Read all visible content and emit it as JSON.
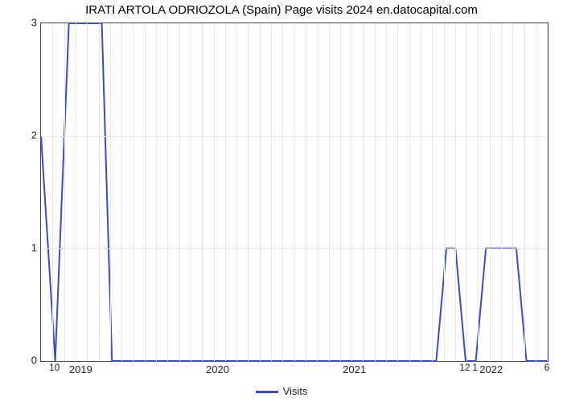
{
  "chart": {
    "type": "line",
    "title": "IRATI ARTOLA ODRIOZOLA (Spain) Page visits 2024 en.datocapital.com",
    "title_fontsize": 15,
    "background_color": "#ffffff",
    "plot_border_color": "#444444",
    "grid_color": "#e7e7e7",
    "text_color": "#000000",
    "axis_label_fontsize": 13,
    "line_color": "#3b4cc0",
    "line_width": 2,
    "y_axis": {
      "min": 0,
      "max": 3,
      "ticks": [
        0,
        1,
        2,
        3
      ]
    },
    "x_axis": {
      "min": 0,
      "max": 1,
      "majors": [
        {
          "pos": 0.08,
          "label": "2019"
        },
        {
          "pos": 0.35,
          "label": "2020"
        },
        {
          "pos": 0.62,
          "label": "2021"
        },
        {
          "pos": 0.89,
          "label": "2022"
        }
      ],
      "minor_step": 0.0227
    },
    "series": {
      "name": "Visits",
      "points": [
        {
          "x": 0.0,
          "y": 2.0,
          "label": ""
        },
        {
          "x": 0.028,
          "y": 0.0,
          "label": "10"
        },
        {
          "x": 0.055,
          "y": 3.0,
          "label": ""
        },
        {
          "x": 0.12,
          "y": 3.0,
          "label": ""
        },
        {
          "x": 0.14,
          "y": 0.0,
          "label": ""
        },
        {
          "x": 0.78,
          "y": 0.0,
          "label": ""
        },
        {
          "x": 0.8,
          "y": 1.0,
          "label": ""
        },
        {
          "x": 0.818,
          "y": 1.0,
          "label": ""
        },
        {
          "x": 0.838,
          "y": 0.0,
          "label": "12"
        },
        {
          "x": 0.858,
          "y": 0.0,
          "label": "1"
        },
        {
          "x": 0.878,
          "y": 1.0,
          "label": ""
        },
        {
          "x": 0.938,
          "y": 1.0,
          "label": ""
        },
        {
          "x": 0.958,
          "y": 0.0,
          "label": ""
        },
        {
          "x": 1.0,
          "y": 0.0,
          "label": "6"
        }
      ]
    },
    "legend_label": "Visits"
  }
}
